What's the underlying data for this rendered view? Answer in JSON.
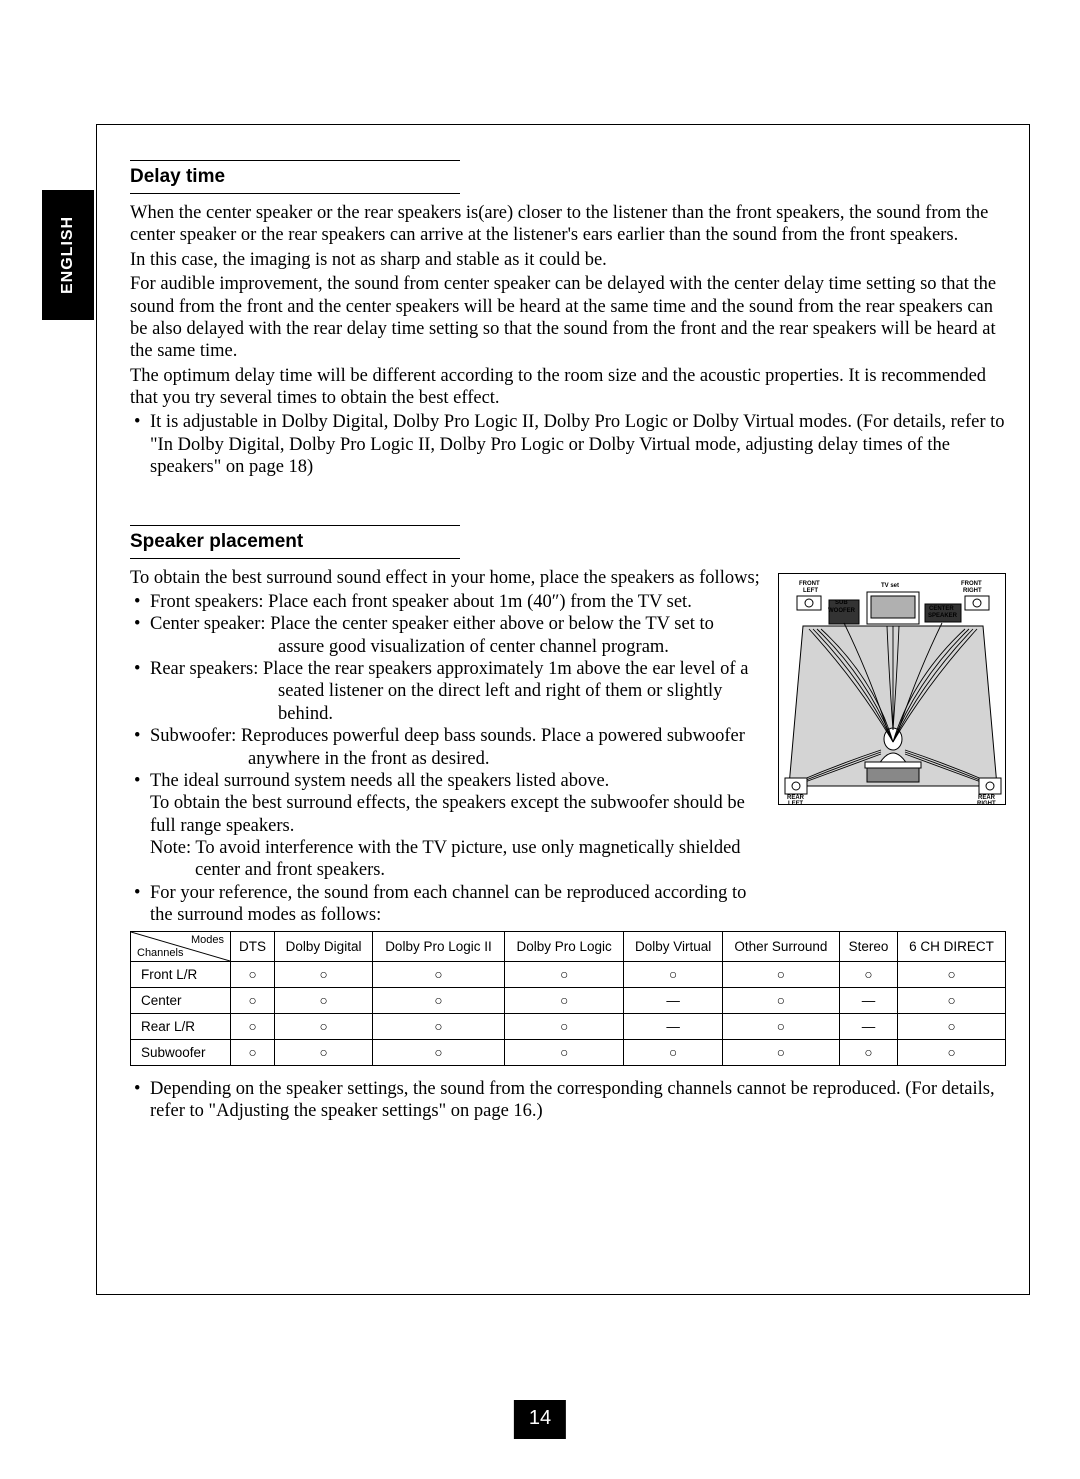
{
  "language_tab": "ENGLISH",
  "page_number": "14",
  "section1": {
    "title": "Delay time",
    "p1": "When the center speaker or the rear speakers is(are) closer to the listener than the front speakers, the sound from the center speaker or the rear speakers can arrive at the listener's ears earlier than the sound from the front speakers.",
    "p2": "In this case, the imaging is not as sharp and stable as it could be.",
    "p3": "For audible improvement, the sound from center speaker can be delayed with the center delay time setting so that the sound from the front and the center speakers will be heard at the same time and the sound from the rear speakers can be also delayed with the rear delay time setting so that the sound from the front and the rear speakers will be heard at the same time.",
    "p4": "The optimum delay time will be different according to the room size and the acoustic properties. It is recommended that you try several times to obtain the best effect.",
    "bullet1": "It is adjustable in Dolby Digital, Dolby Pro Logic II, Dolby Pro Logic or Dolby Virtual modes. (For details, refer to \"In Dolby Digital, Dolby Pro Logic II, Dolby Pro Logic or Dolby Virtual mode, adjusting delay times of the speakers\" on page 18)"
  },
  "section2": {
    "title": "Speaker placement",
    "intro": "To obtain the best surround sound effect in your home, place the speakers as follows;",
    "b_front": "Front speakers: Place each front speaker about 1m (40″) from the TV set.",
    "b_center": "Center speaker: Place the center speaker either above or below the TV set to assure good visualization of center channel program.",
    "b_rear": "Rear speakers: Place the rear speakers approximately 1m above the ear level of a seated listener on the direct left and right of them or slightly behind.",
    "b_sub": "Subwoofer: Reproduces powerful deep bass sounds. Place a powered subwoofer anywhere in the front as desired.",
    "b_ideal1": "The ideal surround system needs all the speakers listed above.",
    "b_ideal2": "To obtain the best surround effects, the speakers except the subwoofer should be full range speakers.",
    "b_ideal_note": "Note: To avoid interference with the TV picture, use only magnetically shielded center and front speakers.",
    "b_ref": "For your reference, the sound from each channel can be reproduced according to the surround modes as follows:",
    "footer": "Depending on the speaker settings, the sound from the corresponding channels cannot be reproduced. (For details, refer to \"Adjusting the speaker settings\" on page 16.)"
  },
  "diagram": {
    "labels": {
      "front_left": "FRONT\nLEFT",
      "tv": "TV set",
      "front_right": "FRONT\nRIGHT",
      "sub": "SUB\nWOOFER",
      "center": "CENTER\nSPEAKER",
      "rear_left": "REAR\nLEFT",
      "rear_right": "REAR\nRIGHT"
    }
  },
  "table": {
    "corner_top": "Modes",
    "corner_bottom": "Channels",
    "headers": [
      "DTS",
      "Dolby Digital",
      "Dolby Pro Logic II",
      "Dolby Pro Logic",
      "Dolby Virtual",
      "Other Surround",
      "Stereo",
      "6 CH DIRECT"
    ],
    "rows": [
      {
        "label": "Front L/R",
        "cells": [
          "○",
          "○",
          "○",
          "○",
          "○",
          "○",
          "○",
          "○"
        ]
      },
      {
        "label": "Center",
        "cells": [
          "○",
          "○",
          "○",
          "○",
          "—",
          "○",
          "—",
          "○"
        ]
      },
      {
        "label": "Rear L/R",
        "cells": [
          "○",
          "○",
          "○",
          "○",
          "—",
          "○",
          "—",
          "○"
        ]
      },
      {
        "label": "Subwoofer",
        "cells": [
          "○",
          "○",
          "○",
          "○",
          "○",
          "○",
          "○",
          "○"
        ]
      }
    ]
  }
}
